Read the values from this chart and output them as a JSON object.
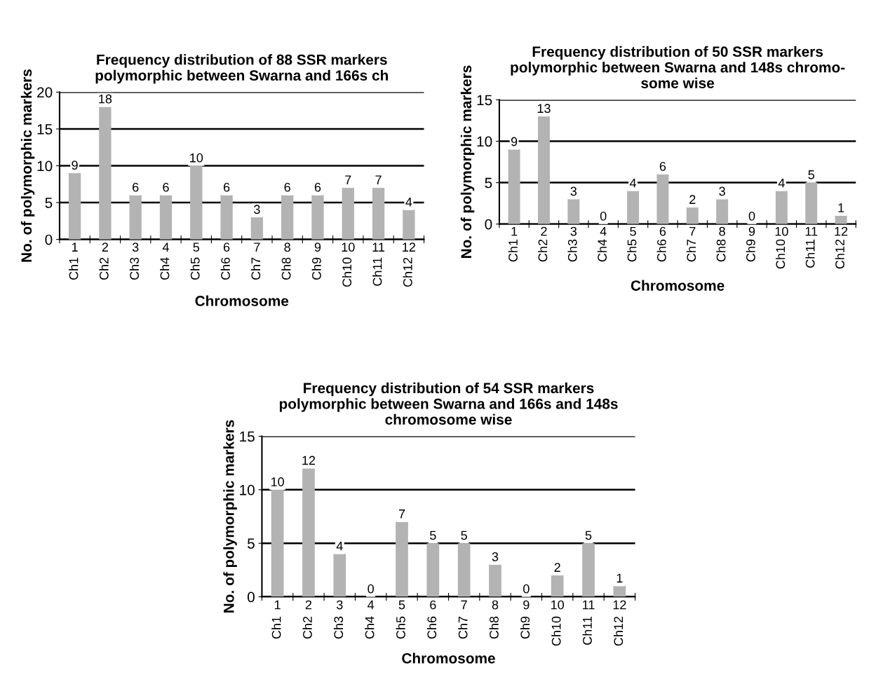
{
  "chart_data": [
    {
      "type": "bar",
      "title": "Frequency distribution of 88 SSR markers\npolymorphic between Swarna and 166s ch",
      "xlabel": "Chromosome",
      "ylabel": "No. of polymorphic markers",
      "categories": [
        "1\nCh1",
        "2\nCh2",
        "3\nCh3",
        "4\nCh4",
        "5\nCh5",
        "6\nCh6",
        "7\nCh7",
        "8\nCh8",
        "9\nCh9",
        "10\nCh10",
        "11\nCh11",
        "12\nCh12"
      ],
      "values": [
        9,
        18,
        6,
        6,
        10,
        6,
        3,
        6,
        6,
        7,
        7,
        4
      ],
      "color": "#b3b3b3",
      "data_labels": true,
      "ylim": [
        0,
        20
      ],
      "yticks": [
        0,
        5,
        10,
        15,
        20
      ],
      "grid": "y"
    },
    {
      "type": "bar",
      "title": "Frequency distribution of 50 SSR markers\npolymorphic between Swarna and 148s chromo-\nsome wise",
      "xlabel": "Chromosome",
      "ylabel": "No. of polymorphic markers",
      "categories": [
        "1\nCh1",
        "2\nCh2",
        "3\nCh3",
        "4\nCh4",
        "5\nCh5",
        "6\nCh6",
        "7\nCh7",
        "8\nCh8",
        "9\nCh9",
        "10\nCh10",
        "11\nCh11",
        "12\nCh12"
      ],
      "values": [
        9,
        13,
        3,
        0,
        4,
        6,
        2,
        3,
        0,
        4,
        5,
        1
      ],
      "color": "#b3b3b3",
      "data_labels": true,
      "ylim": [
        0,
        15
      ],
      "yticks": [
        0,
        5,
        10,
        15
      ],
      "grid": "y"
    },
    {
      "type": "bar",
      "title": "Frequency distribution of 54 SSR markers\npolymorphic between Swarna and 166s and 148s\nchromosome wise",
      "xlabel": "Chromosome",
      "ylabel": "No. of polymorphic markers",
      "categories": [
        "1\nCh1",
        "2\nCh2",
        "3\nCh3",
        "4\nCh4",
        "5\nCh5",
        "6\nCh6",
        "7\nCh7",
        "8\nCh8",
        "9\nCh9",
        "10\nCh10",
        "11\nCh11",
        "12\nCh12"
      ],
      "values": [
        10,
        12,
        4,
        0,
        7,
        5,
        5,
        3,
        0,
        2,
        5,
        1
      ],
      "color": "#b3b3b3",
      "data_labels": true,
      "ylim": [
        0,
        15
      ],
      "yticks": [
        0,
        5,
        10,
        15
      ],
      "grid": "y"
    }
  ]
}
